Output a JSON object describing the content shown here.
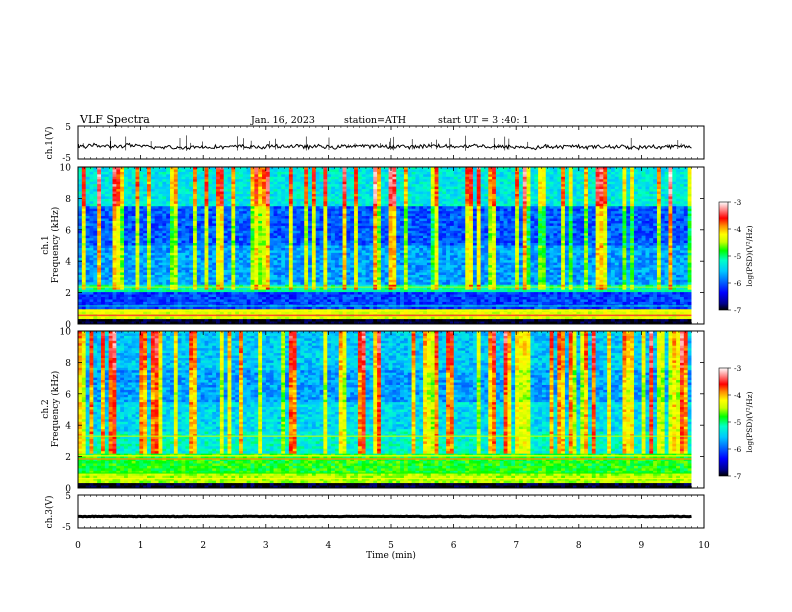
{
  "header": {
    "title": "VLF  Spectra",
    "date": "Jan. 16, 2023",
    "station": "station=ATH",
    "start_ut": "start  UT  =   3  :40: 1"
  },
  "colors": {
    "scale": [
      "#000000",
      "#00008c",
      "#0000ff",
      "#0064ff",
      "#00c8ff",
      "#00ffc8",
      "#00ff00",
      "#c8ff00",
      "#ffff00",
      "#ff8c00",
      "#ff0000",
      "#ff8c8c",
      "#ffffff"
    ]
  },
  "chart_data": [
    {
      "panel": "ch1-waveform",
      "type": "line",
      "ylabel": "ch.1(V)",
      "yticks": [
        "5",
        "-5"
      ],
      "ylim": [
        -5,
        5
      ],
      "xlim": [
        0,
        10
      ],
      "baseline": -1.2
    },
    {
      "panel": "ch1-spectrogram",
      "type": "heatmap",
      "ylabel_top": "ch.1",
      "ylabel": "Frequency  (kHz)",
      "yticks": [
        "0",
        "2",
        "4",
        "6",
        "8",
        "10"
      ],
      "ylim": [
        0,
        10
      ],
      "xlim": [
        0,
        10
      ],
      "colorbar": {
        "label": "log(PSD)(V²/Hz)",
        "ticks": [
          "-3",
          "-4",
          "-5",
          "-6",
          "-7"
        ],
        "range": [
          -7,
          -3
        ]
      }
    },
    {
      "panel": "ch2-spectrogram",
      "type": "heatmap",
      "ylabel_top": "ch.2",
      "ylabel": "Frequency  (kHz)",
      "yticks": [
        "0",
        "2",
        "4",
        "6",
        "8",
        "10"
      ],
      "ylim": [
        0,
        10
      ],
      "xlim": [
        0,
        10
      ],
      "colorbar": {
        "label": "log(PSD)(V²/Hz)",
        "ticks": [
          "-3",
          "-4",
          "-5",
          "-6",
          "-7"
        ],
        "range": [
          -7,
          -3
        ]
      }
    },
    {
      "panel": "ch3-waveform",
      "type": "line",
      "ylabel": "ch.3(V)",
      "yticks": [
        "5",
        "-5"
      ],
      "ylim": [
        -5,
        5
      ],
      "xlim": [
        0,
        10
      ],
      "baseline": -1.5
    }
  ],
  "xaxis": {
    "label": "Time  (min)",
    "ticks": [
      "0",
      "1",
      "2",
      "3",
      "4",
      "5",
      "6",
      "7",
      "8",
      "9",
      "10"
    ],
    "data_end": 9.8
  }
}
